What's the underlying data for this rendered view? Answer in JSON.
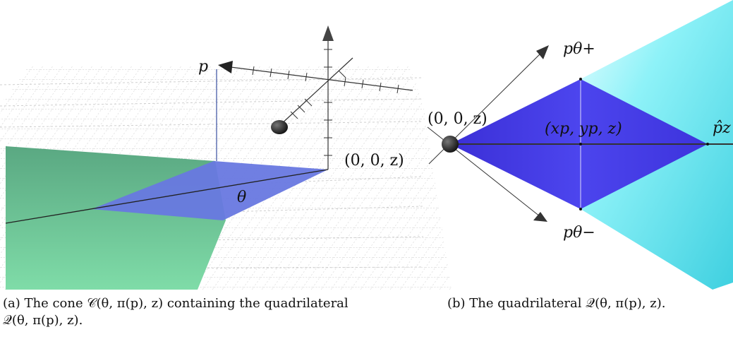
{
  "panel_a": {
    "label_p": "p",
    "label_origin": "(0, 0, z)",
    "label_theta": "θ",
    "colors": {
      "cone": "#6fd0a0",
      "quad": "#6a7ee6",
      "grid": "#b8b8b8",
      "axis": "#222222"
    }
  },
  "panel_b": {
    "label_origin": "(0, 0, z)",
    "label_center": "(xp, yp, z)",
    "label_p_plus": "pθ+",
    "label_p_minus": "pθ−",
    "label_p_hat": "p̂z",
    "colors": {
      "cone": "#66e8f2",
      "quad": "#3f35e8",
      "axis": "#333333"
    }
  },
  "captions": {
    "a": "(a) The cone 𝒞(θ, π(p), z) containing the quadrilateral\n𝒬(θ, π(p), z).",
    "b": "(b) The quadrilateral 𝒬(θ, π(p), z)."
  }
}
